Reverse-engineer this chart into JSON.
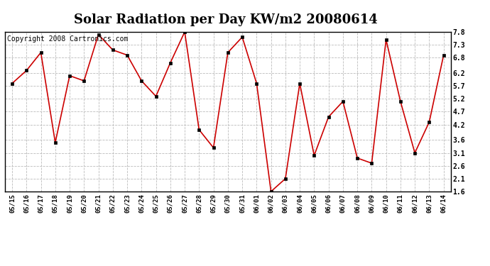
{
  "title": "Solar Radiation per Day KW/m2 20080614",
  "copyright": "Copyright 2008 Cartronics.com",
  "dates": [
    "05/15",
    "05/16",
    "05/17",
    "05/18",
    "05/19",
    "05/20",
    "05/21",
    "05/22",
    "05/23",
    "05/24",
    "05/25",
    "05/26",
    "05/27",
    "05/28",
    "05/29",
    "05/30",
    "05/31",
    "06/01",
    "06/02",
    "06/03",
    "06/04",
    "06/05",
    "06/06",
    "06/07",
    "06/08",
    "06/09",
    "06/10",
    "06/11",
    "06/12",
    "06/13",
    "06/14"
  ],
  "values": [
    5.8,
    6.3,
    7.0,
    3.5,
    6.1,
    5.9,
    7.7,
    7.1,
    6.9,
    5.9,
    5.3,
    6.6,
    7.8,
    4.0,
    3.3,
    7.0,
    7.6,
    5.8,
    1.6,
    2.1,
    5.8,
    3.0,
    4.5,
    5.1,
    2.9,
    2.7,
    7.5,
    5.1,
    3.1,
    4.3,
    6.9
  ],
  "line_color": "#cc0000",
  "marker": "s",
  "marker_size": 3,
  "ylim": [
    1.6,
    7.8
  ],
  "yticks": [
    1.6,
    2.1,
    2.6,
    3.1,
    3.6,
    4.2,
    4.7,
    5.2,
    5.7,
    6.2,
    6.8,
    7.3,
    7.8
  ],
  "background_color": "#ffffff",
  "grid_color": "#bbbbbb",
  "title_fontsize": 13,
  "copyright_fontsize": 7
}
